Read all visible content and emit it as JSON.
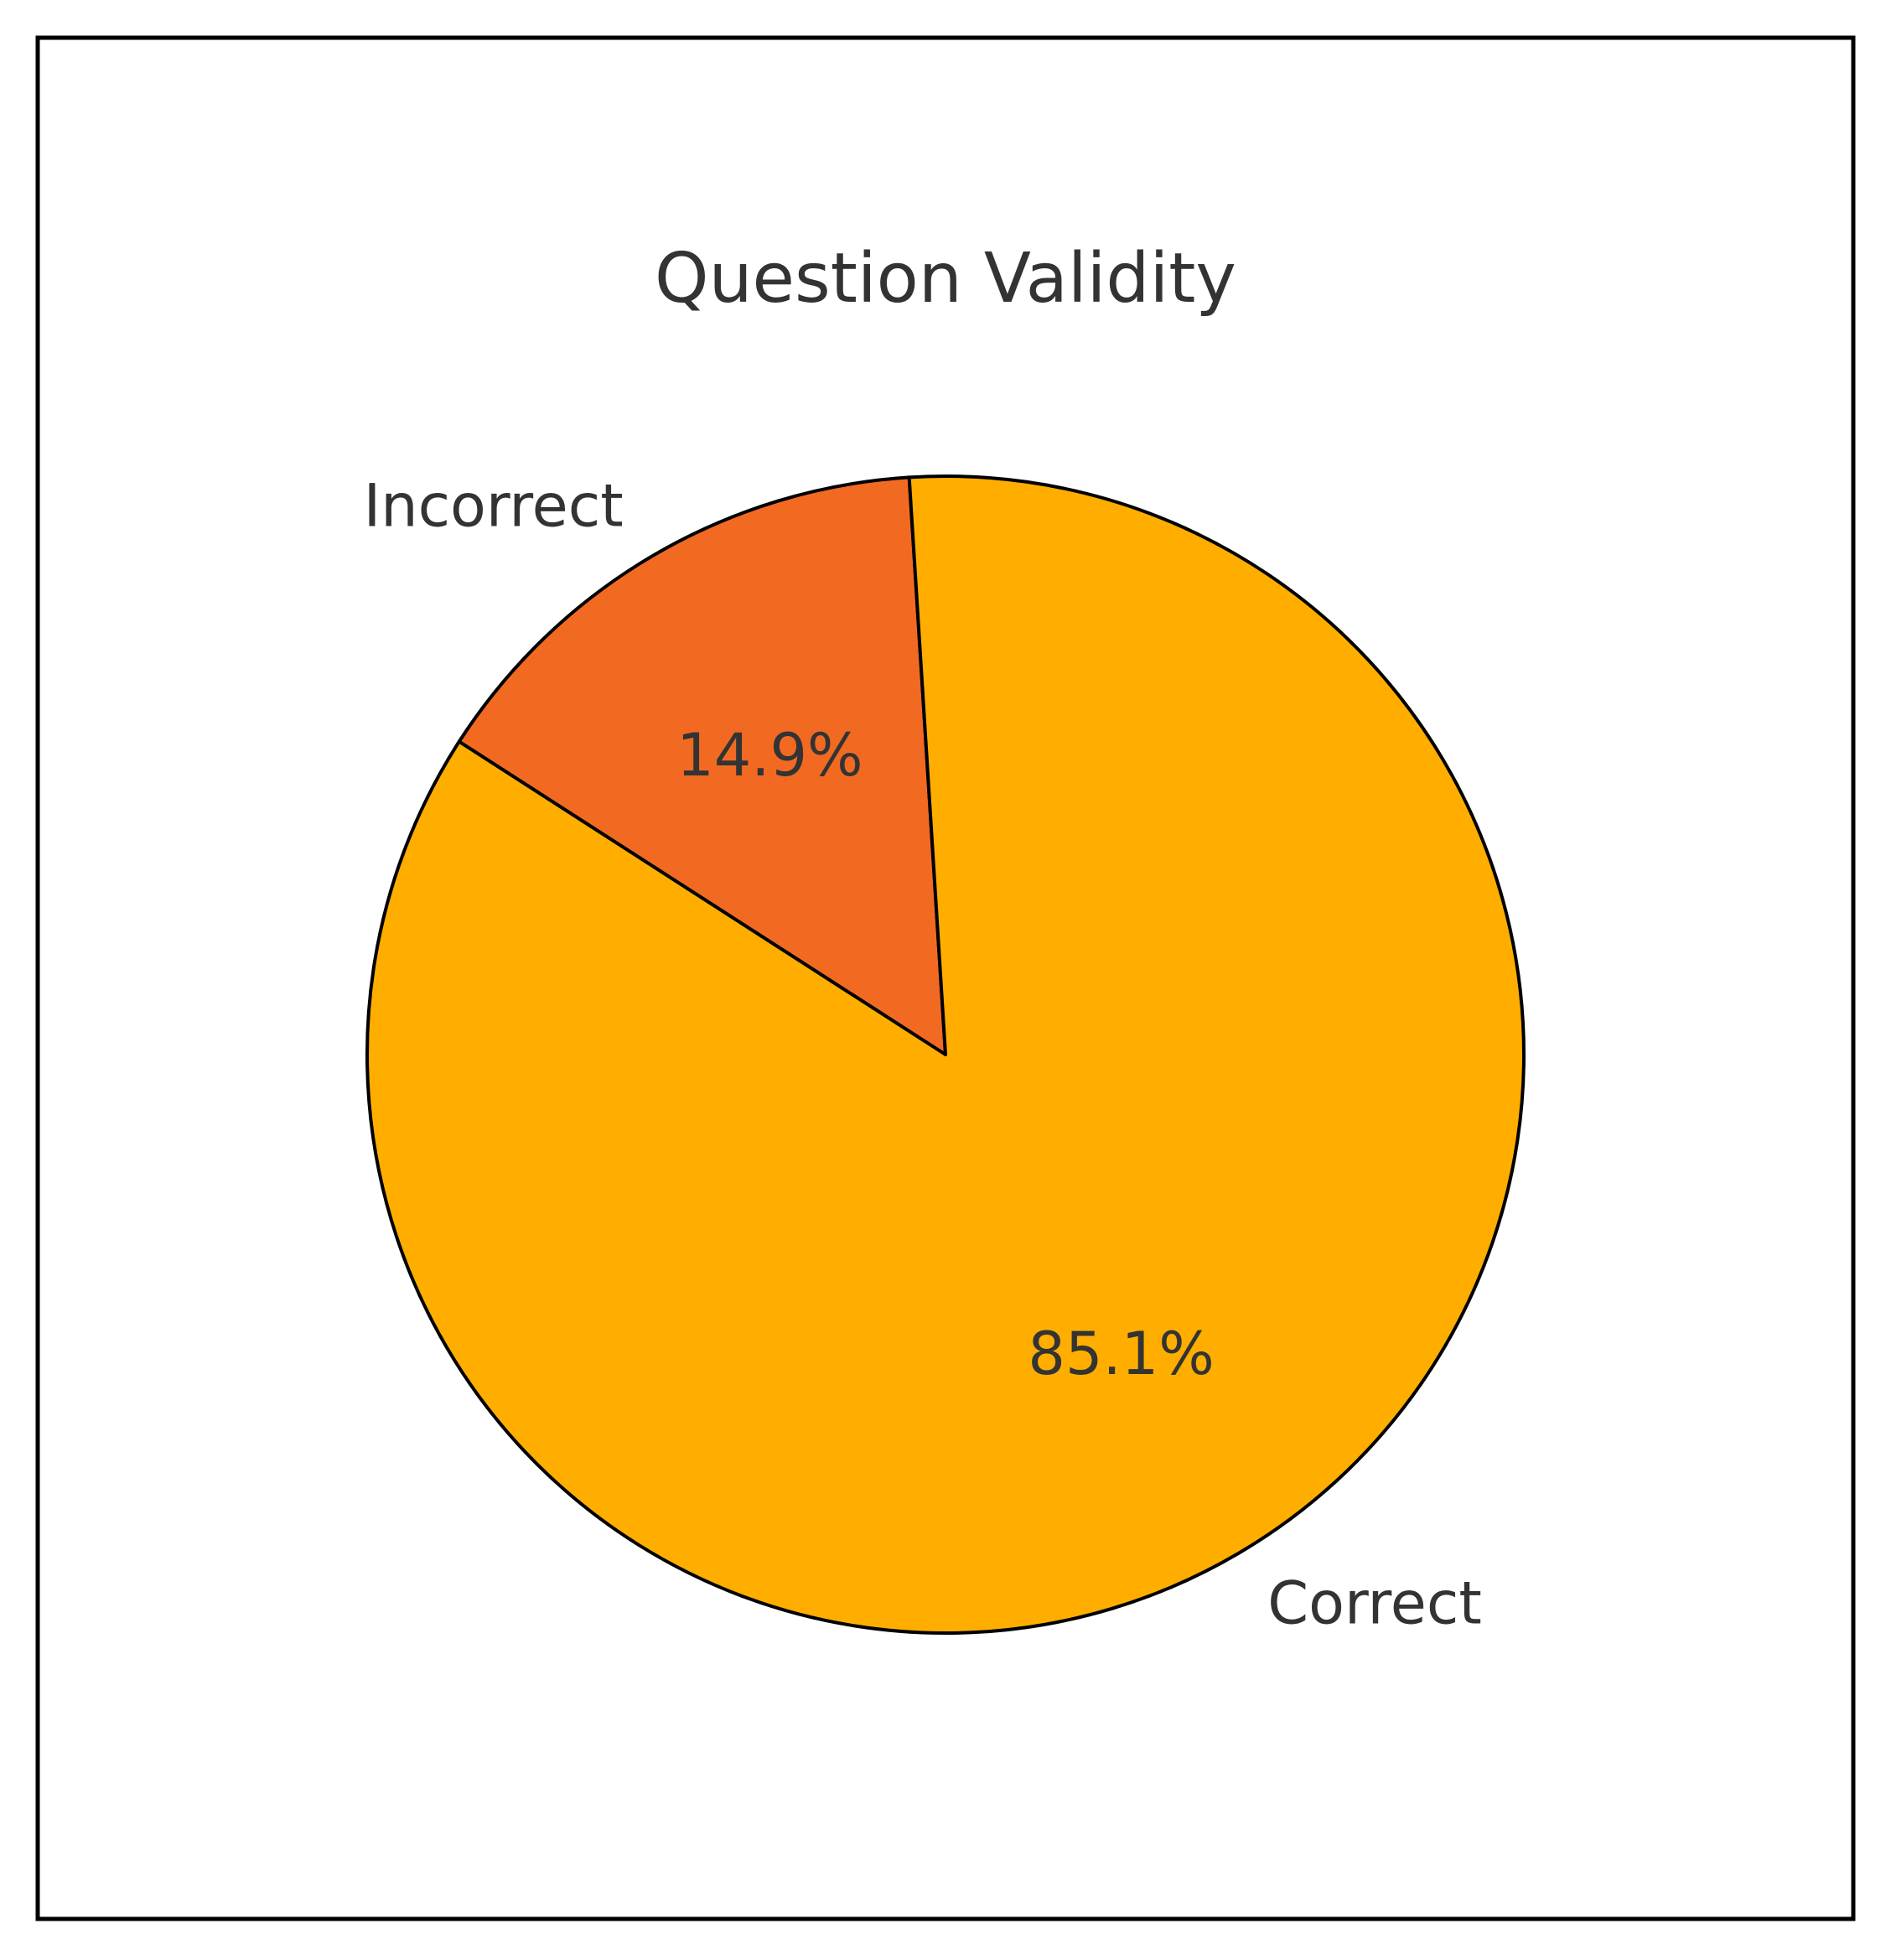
{
  "chart_data": {
    "type": "pie",
    "title": "Question Validity",
    "slices": [
      {
        "label": "Incorrect",
        "value": 14.9,
        "value_label": "14.9%",
        "color": "#F26A22"
      },
      {
        "label": "Correct",
        "value": 85.1,
        "value_label": "85.1%",
        "color": "#FFAE00"
      }
    ],
    "start_angle_deg": 93.6,
    "direction": "counterclockwise",
    "edge_color": "#000000",
    "frame_border": true
  }
}
